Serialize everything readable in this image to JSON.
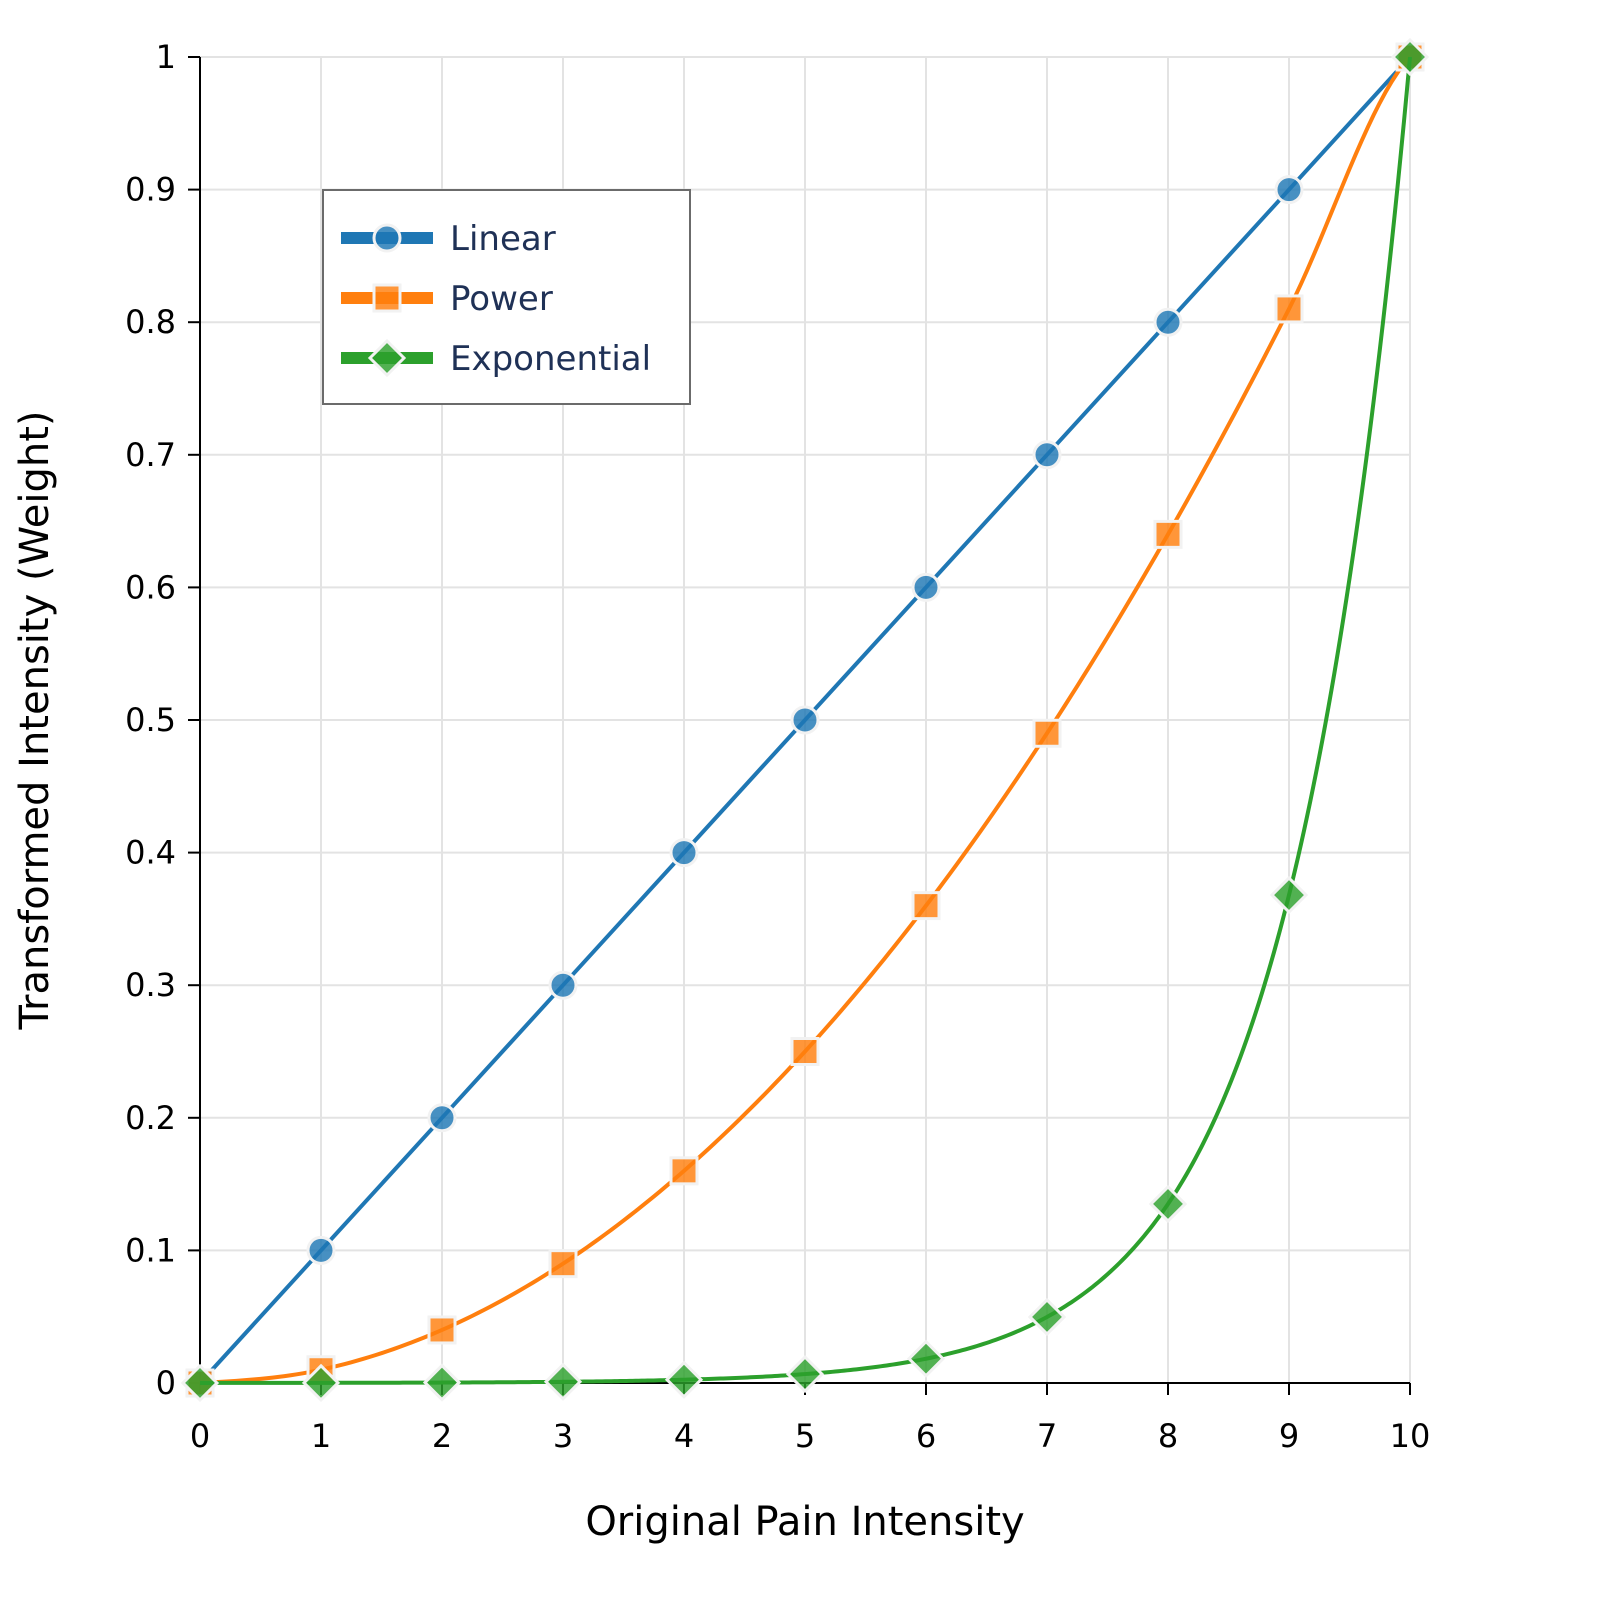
{
  "chart_data": {
    "type": "line",
    "title": "",
    "xlabel": "Original Pain Intensity",
    "ylabel": "Transformed Intensity (Weight)",
    "xlim": [
      0,
      10
    ],
    "ylim": [
      0,
      1
    ],
    "grid": true,
    "legend_position": "top-left",
    "x": [
      0,
      1,
      2,
      3,
      4,
      5,
      6,
      7,
      8,
      9,
      10
    ],
    "x_ticks": [
      "0",
      "1",
      "2",
      "3",
      "4",
      "5",
      "6",
      "7",
      "8",
      "9",
      "10"
    ],
    "y_ticks": [
      "0",
      "0.1",
      "0.2",
      "0.3",
      "0.4",
      "0.5",
      "0.6",
      "0.7",
      "0.8",
      "0.9",
      "1"
    ],
    "series": [
      {
        "name": "Linear",
        "marker": "circle",
        "color": "#1f77b4",
        "values": [
          0,
          0.1,
          0.2,
          0.3,
          0.4,
          0.5,
          0.6,
          0.7,
          0.8,
          0.9,
          1.0
        ]
      },
      {
        "name": "Power",
        "marker": "square",
        "color": "#ff7f0e",
        "values": [
          0,
          0.01,
          0.04,
          0.09,
          0.16,
          0.25,
          0.36,
          0.49,
          0.64,
          0.81,
          1.0
        ]
      },
      {
        "name": "Exponential",
        "marker": "diamond",
        "color": "#2ca02c",
        "values": [
          4.54e-05,
          0.000123,
          0.000335,
          0.000912,
          0.00248,
          0.00674,
          0.0183,
          0.0498,
          0.135,
          0.368,
          1.0
        ]
      }
    ]
  }
}
